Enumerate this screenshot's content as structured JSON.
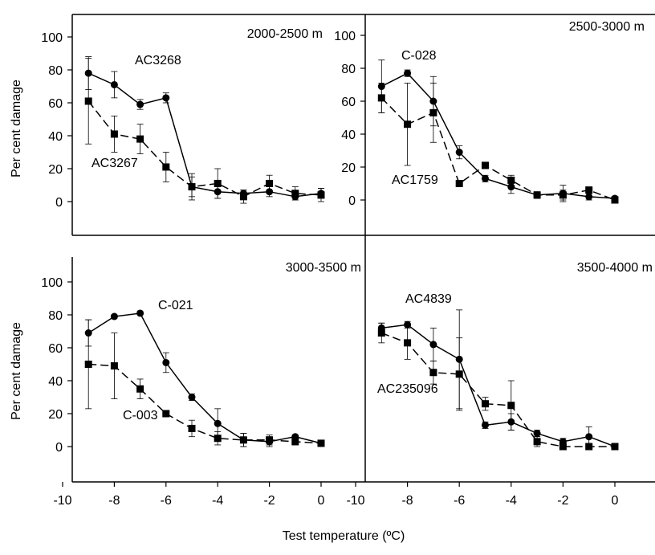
{
  "figure": {
    "ylabel": "Per cent damage",
    "xlabel": "Test temperature (ºC)"
  },
  "chart_data": [
    {
      "type": "line",
      "panel": "top-left",
      "elevation_label": "2000-2500 m",
      "xlim": [
        -10,
        0
      ],
      "ylim": [
        -20,
        100
      ],
      "yticks": [
        0,
        20,
        40,
        60,
        80,
        100
      ],
      "series": [
        {
          "name": "AC3268",
          "marker": "circle",
          "line": "solid",
          "x": [
            -9,
            -8,
            -7,
            -6,
            -5,
            -4,
            -3,
            -2,
            -1,
            0
          ],
          "y": [
            78,
            71,
            59,
            63,
            9,
            6,
            5,
            6,
            3,
            5
          ],
          "err": [
            10,
            8,
            3,
            3,
            8,
            4,
            2,
            3,
            2,
            3
          ]
        },
        {
          "name": "AC3267",
          "marker": "square",
          "line": "dashed",
          "x": [
            -9,
            -8,
            -7,
            -6,
            -5,
            -4,
            -3,
            -2,
            -1,
            0
          ],
          "y": [
            61,
            41,
            38,
            21,
            9,
            11,
            3,
            11,
            5,
            4
          ],
          "err": [
            26,
            11,
            9,
            9,
            6,
            9,
            4,
            5,
            4,
            4
          ]
        }
      ]
    },
    {
      "type": "line",
      "panel": "top-right",
      "elevation_label": "2500-3000 m",
      "xlim": [
        -10,
        0
      ],
      "ylim": [
        -20,
        100
      ],
      "yticks": [
        0,
        20,
        40,
        60,
        80,
        100
      ],
      "series": [
        {
          "name": "C-028",
          "marker": "circle",
          "line": "solid",
          "x": [
            -9,
            -8,
            -7,
            -6,
            -5,
            -4,
            -3,
            -2,
            -1,
            0
          ],
          "y": [
            69,
            77,
            60,
            29,
            13,
            8,
            3,
            4,
            2,
            1
          ],
          "err": [
            16,
            2,
            15,
            4,
            2,
            4,
            2,
            5,
            2,
            1
          ]
        },
        {
          "name": "AC1759",
          "marker": "square",
          "line": "dashed",
          "x": [
            -9,
            -8,
            -7,
            -6,
            -5,
            -4,
            -3,
            -2,
            -1,
            0
          ],
          "y": [
            62,
            46,
            53,
            10,
            21,
            12,
            3,
            3,
            6,
            0
          ],
          "err": [
            9,
            25,
            18,
            2,
            2,
            3,
            2,
            3,
            2,
            1
          ]
        }
      ]
    },
    {
      "type": "line",
      "panel": "bottom-left",
      "elevation_label": "3000-3500 m",
      "xlim": [
        -10,
        0
      ],
      "ylim": [
        -20,
        100
      ],
      "yticks": [
        0,
        20,
        40,
        60,
        80,
        100
      ],
      "series": [
        {
          "name": "C-021",
          "marker": "circle",
          "line": "solid",
          "x": [
            -9,
            -8,
            -7,
            -6,
            -5,
            -4,
            -3,
            -2,
            -1,
            0
          ],
          "y": [
            69,
            79,
            81,
            51,
            30,
            14,
            4,
            3,
            6,
            2
          ],
          "err": [
            8,
            1,
            1,
            6,
            2,
            9,
            4,
            3,
            1,
            1
          ]
        },
        {
          "name": "C-003",
          "marker": "square",
          "line": "dashed",
          "x": [
            -9,
            -8,
            -7,
            -6,
            -5,
            -4,
            -3,
            -2,
            -1,
            0
          ],
          "y": [
            50,
            49,
            35,
            20,
            11,
            5,
            4,
            4,
            3,
            2
          ],
          "err": [
            27,
            20,
            6,
            1,
            5,
            4,
            4,
            3,
            2,
            1
          ]
        }
      ]
    },
    {
      "type": "line",
      "panel": "bottom-right",
      "elevation_label": "3500-4000 m",
      "xlim": [
        -10,
        0
      ],
      "ylim": [
        -20,
        100
      ],
      "yticks": [],
      "series": [
        {
          "name": "AC4839",
          "marker": "circle",
          "line": "solid",
          "x": [
            -9,
            -8,
            -7,
            -6,
            -5,
            -4,
            -3,
            -2,
            -1,
            0
          ],
          "y": [
            72,
            74,
            62,
            53,
            13,
            15,
            8,
            3,
            6,
            0
          ],
          "err": [
            3,
            2,
            10,
            30,
            2,
            5,
            2,
            2,
            6,
            1
          ]
        },
        {
          "name": "AC235096",
          "marker": "square",
          "line": "dashed",
          "x": [
            -9,
            -8,
            -7,
            -6,
            -5,
            -4,
            -3,
            -2,
            -1,
            0
          ],
          "y": [
            69,
            63,
            45,
            44,
            26,
            25,
            3,
            0,
            0,
            0
          ],
          "err": [
            6,
            10,
            7,
            22,
            4,
            15,
            3,
            2,
            1,
            1
          ]
        }
      ]
    }
  ],
  "x_tick_labels": [
    "-10",
    "-8",
    "-6",
    "-4",
    "-2",
    "0"
  ]
}
